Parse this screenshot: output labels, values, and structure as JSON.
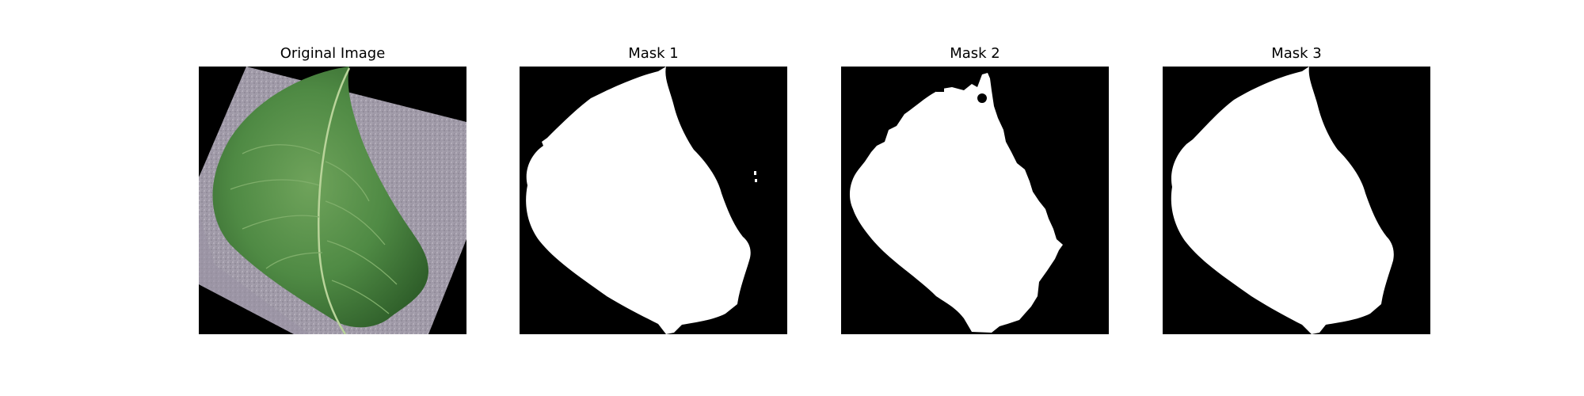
{
  "figure": {
    "background_color": "#ffffff",
    "panels": [
      {
        "title": "Original Image",
        "content": "leaf-photo"
      },
      {
        "title": "Mask 1",
        "content": "binary-mask"
      },
      {
        "title": "Mask 2",
        "content": "binary-mask"
      },
      {
        "title": "Mask 3",
        "content": "binary-mask"
      }
    ],
    "colors": {
      "mask_foreground": "#ffffff",
      "mask_background": "#000000",
      "leaf_dark": "#2f5f2a",
      "leaf_mid": "#4f8a44",
      "leaf_light": "#77aa62",
      "backdrop": "#9d97a4"
    }
  }
}
